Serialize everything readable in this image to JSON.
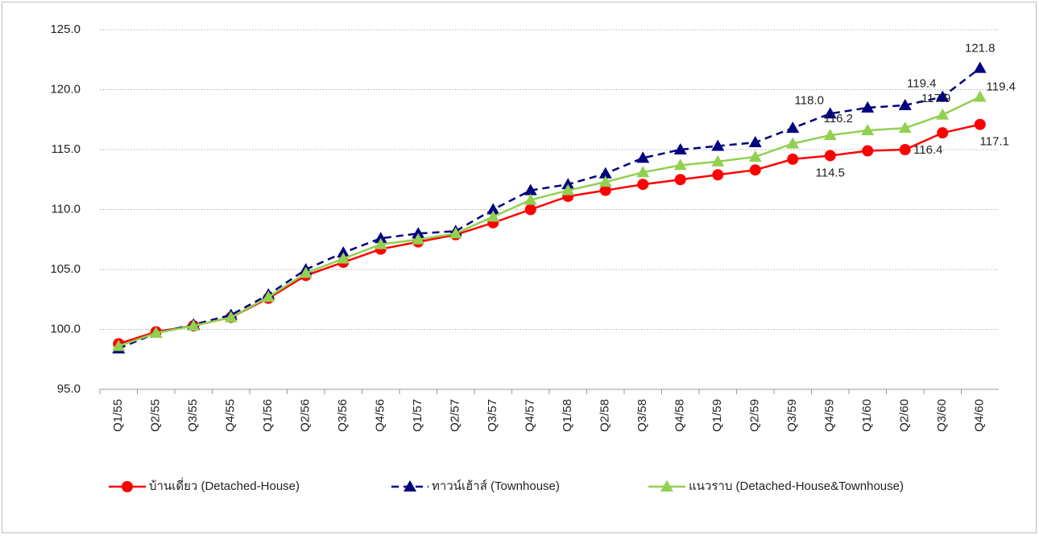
{
  "chart_data": {
    "type": "line",
    "categories": [
      "Q1/55",
      "Q2/55",
      "Q3/55",
      "Q4/55",
      "Q1/56",
      "Q2/56",
      "Q3/56",
      "Q4/56",
      "Q1/57",
      "Q2/57",
      "Q3/57",
      "Q4/57",
      "Q1/58",
      "Q2/58",
      "Q3/58",
      "Q4/58",
      "Q1/59",
      "Q2/59",
      "Q3/59",
      "Q4/59",
      "Q1/60",
      "Q2/60",
      "Q3/60",
      "Q4/60"
    ],
    "series": [
      {
        "name": "บ้านเดี่ยว (Detached-House)",
        "color": "#ff0000",
        "marker": "circle",
        "dash": false,
        "values": [
          98.8,
          99.8,
          100.3,
          101.0,
          102.6,
          104.5,
          105.6,
          106.7,
          107.3,
          107.9,
          108.9,
          110.0,
          111.1,
          111.6,
          112.1,
          112.5,
          112.9,
          113.3,
          114.2,
          114.5,
          114.9,
          115.0,
          116.4,
          117.1
        ],
        "value_labels": [
          null,
          null,
          null,
          null,
          null,
          null,
          null,
          null,
          null,
          null,
          null,
          null,
          null,
          null,
          null,
          null,
          null,
          null,
          null,
          "114.5",
          null,
          null,
          "116.4",
          "117.1"
        ]
      },
      {
        "name": "ทาวน์เฮ้าส์ (Townhouse)",
        "color": "#000080",
        "marker": "triangle",
        "dash": true,
        "values": [
          98.4,
          99.7,
          100.4,
          101.2,
          102.9,
          105.0,
          106.4,
          107.6,
          108.0,
          108.2,
          110.0,
          111.6,
          112.1,
          113.0,
          114.3,
          115.0,
          115.3,
          115.6,
          116.8,
          118.0,
          118.5,
          118.7,
          119.4,
          121.8
        ],
        "value_labels": [
          null,
          null,
          null,
          null,
          null,
          null,
          null,
          null,
          null,
          null,
          null,
          null,
          null,
          null,
          null,
          null,
          null,
          null,
          null,
          "118.0",
          null,
          null,
          "119.4",
          "121.8"
        ]
      },
      {
        "name": "แนวราบ (Detached-House&Townhouse)",
        "color": "#92d050",
        "marker": "triangle",
        "dash": false,
        "values": [
          98.6,
          99.7,
          100.3,
          101.0,
          102.7,
          104.7,
          105.9,
          107.1,
          107.5,
          108.0,
          109.4,
          110.8,
          111.6,
          112.3,
          113.1,
          113.7,
          114.0,
          114.4,
          115.5,
          116.2,
          116.6,
          116.8,
          117.9,
          119.4
        ],
        "value_labels": [
          null,
          null,
          null,
          null,
          null,
          null,
          null,
          null,
          null,
          null,
          null,
          null,
          null,
          null,
          null,
          null,
          null,
          null,
          null,
          "116.2",
          null,
          null,
          "117.9",
          "119.4"
        ]
      }
    ],
    "ylim": [
      95,
      125
    ],
    "yticks": [
      {
        "value": 95,
        "label": "95.0"
      },
      {
        "value": 100,
        "label": "100.0"
      },
      {
        "value": 105,
        "label": "105.0"
      },
      {
        "value": 110,
        "label": "110.0"
      },
      {
        "value": 115,
        "label": "115.0"
      },
      {
        "value": 120,
        "label": "120.0"
      },
      {
        "value": 125,
        "label": "125.0"
      }
    ],
    "grid": true,
    "legend": "bottom"
  }
}
